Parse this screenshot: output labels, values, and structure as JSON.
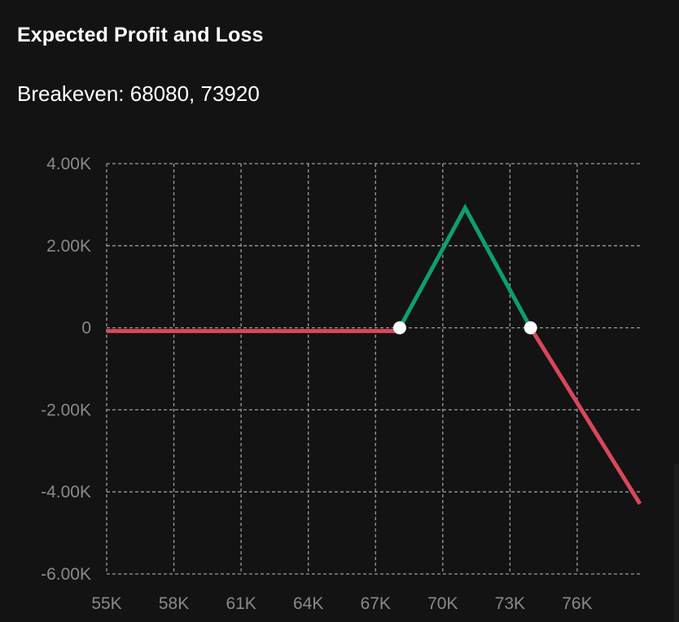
{
  "panel": {
    "title": "Expected Profit and Loss",
    "breakeven_label": "Breakeven: 68080, 73920"
  },
  "colors": {
    "background": "#131313",
    "profit": "#0e9f6e",
    "loss": "#d9475a",
    "grid": "#9a9a9a",
    "tick_text": "#8a8a8a",
    "marker": "#ffffff"
  },
  "chart_data": {
    "type": "line",
    "title": "Expected Profit and Loss",
    "xlabel": "",
    "ylabel": "",
    "xlim": [
      55000,
      78800
    ],
    "ylim": [
      -6000,
      4000
    ],
    "grid": true,
    "x_ticks": [
      55000,
      58000,
      61000,
      64000,
      67000,
      70000,
      73000,
      76000
    ],
    "x_tick_labels": [
      "55K",
      "58K",
      "61K",
      "64K",
      "67K",
      "70K",
      "73K",
      "76K"
    ],
    "y_ticks": [
      4000,
      2000,
      0,
      -2000,
      -4000,
      -6000
    ],
    "y_tick_labels": [
      "4.00K",
      "2.00K",
      "0",
      "-2.00K",
      "-4.00K",
      "-6.00K"
    ],
    "series": [
      {
        "role": "loss",
        "color": "#d9475a",
        "points": [
          [
            55000,
            -80
          ],
          [
            68080,
            -80
          ]
        ]
      },
      {
        "role": "profit",
        "color": "#0e9f6e",
        "points": [
          [
            68080,
            0
          ],
          [
            71000,
            2920
          ],
          [
            73920,
            0
          ]
        ]
      },
      {
        "role": "loss",
        "color": "#d9475a",
        "points": [
          [
            73920,
            0
          ],
          [
            78800,
            -4290
          ]
        ]
      }
    ],
    "breakeven_points": [
      68080,
      73920
    ]
  }
}
